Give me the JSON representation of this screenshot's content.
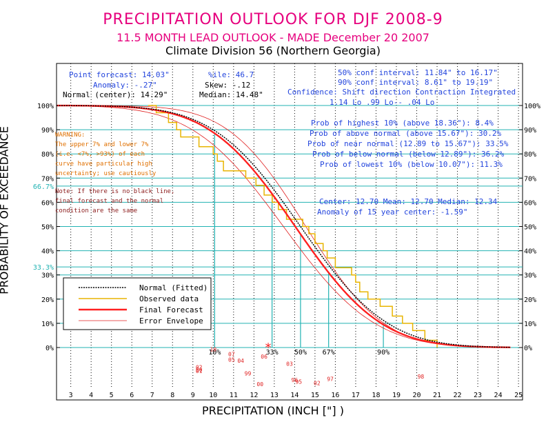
{
  "header": {
    "title": "PRECIPITATION OUTLOOK FOR DJF 2008-9",
    "subtitle": "11.5 MONTH LEAD OUTLOOK  - MADE December 20 2007",
    "division": "Climate Division 56 (Northern Georgia)"
  },
  "stats": {
    "point_forecast": "Point forecast: 14.03\"",
    "anomaly": "Anomaly: -.27\"",
    "normal_center": "Normal (center): 14.29\"",
    "ile": "%ile: 46.7",
    "skew": "Skew: -.12",
    "median": "Median: 14.48\"",
    "conf50": "50% conf interval: 11.84\" to 16.17\"",
    "conf90": "90% conf interval: 8.61\" to 19.19\"",
    "confidence_header": "Confidence: Shift direction   Contraction   Integrated",
    "confidence_values": "1.14 Lo          .99 Lo--      .04 Lo"
  },
  "probabilities": [
    "Prob of highest 10% (above 18.36\"): 8.4%",
    "Prob of above normal (above 15.67\"): 30.2%",
    "Prob of near normal (12.89 to 15.67\"): 33.5%",
    "Prob of below normal (below 12.89\"): 36.2%",
    "Prob of lowest 10% (below 10.07\"): 11.3%"
  ],
  "center_info": [
    "Center: 12.70 Mean: 12.70 Median: 12.34",
    "Anomaly of 15 year center: -1.59\""
  ],
  "warning": [
    "WARNING:",
    "The upper 7% and lower 7%",
    "(i.e. <7%, >93%) of each",
    "curve have particular high",
    "uncertainty; use cautiously"
  ],
  "note": [
    "Note: If there is no black line,",
    "final forecast and the normal",
    "condition are the same"
  ],
  "legend": [
    "Normal (Fitted)",
    "Observed data",
    "Final Forecast",
    "Error Envelope"
  ],
  "colors": {
    "title": "#e6007e",
    "grid": "#20b2b2",
    "observed": "#e8b400",
    "forecast": "#ff2020",
    "envelope": "#e02020",
    "normal": "#000000",
    "text_blue": "#2244dd",
    "years": "#e02020"
  },
  "chart_data": {
    "type": "line",
    "xlabel": "PRECIPITATION (INCH [\"] )",
    "ylabel": "PROBABILITY OF EXCEEDANCE",
    "xlim": [
      2.3,
      25.2
    ],
    "ylim": [
      0,
      100
    ],
    "x_ticks": [
      3,
      4,
      5,
      6,
      7,
      8,
      9,
      10,
      11,
      12,
      13,
      14,
      15,
      16,
      17,
      18,
      19,
      20,
      21,
      22,
      23,
      24,
      25
    ],
    "y_ticks_left": [
      "100%",
      "90%",
      "80%",
      "70%",
      "60%",
      "50%",
      "40%",
      "30%",
      "20%",
      "10%",
      "0%"
    ],
    "y_ticks_right": [
      "100%",
      "90%",
      "80%",
      "70%",
      "60%",
      "50%",
      "40%",
      "30%",
      "20%",
      "10%",
      "0%"
    ],
    "y_tick_values": [
      100,
      90,
      80,
      70,
      60,
      50,
      40,
      30,
      20,
      10,
      0
    ],
    "marker_levels": [
      {
        "label": "66.7%",
        "value": 66.7
      },
      {
        "label": "33.3%",
        "value": 33.3
      }
    ],
    "percentile_markers": [
      {
        "label": "10%",
        "x": 10.07
      },
      {
        "label": "33%",
        "x": 12.89
      },
      {
        "label": "50%",
        "x": 14.29
      },
      {
        "label": "67%",
        "x": 15.67
      },
      {
        "label": "90%",
        "x": 18.36
      }
    ],
    "point_forecast_marker": {
      "x": 12.7,
      "y": 0,
      "symbol": "*"
    },
    "series": [
      {
        "name": "Normal (Fitted)",
        "mean": 14.29,
        "sd": 3.35,
        "style": "dotted"
      },
      {
        "name": "Final Forecast",
        "mean": 14.03,
        "sd": 3.3,
        "style": "solid"
      },
      {
        "name": "Error Envelope (upper)",
        "mean": 14.55,
        "sd": 3.0,
        "style": "thin"
      },
      {
        "name": "Error Envelope (lower)",
        "mean": 13.45,
        "sd": 3.5,
        "style": "thin"
      },
      {
        "name": "Observed data",
        "type": "step",
        "values": [
          [
            6.8,
            100
          ],
          [
            7.2,
            97
          ],
          [
            7.8,
            93
          ],
          [
            8.2,
            90
          ],
          [
            8.4,
            87
          ],
          [
            9.0,
            87
          ],
          [
            9.3,
            83
          ],
          [
            10.0,
            80
          ],
          [
            10.2,
            77
          ],
          [
            10.5,
            73
          ],
          [
            11.3,
            73
          ],
          [
            11.6,
            70
          ],
          [
            12.1,
            67
          ],
          [
            12.5,
            63
          ],
          [
            12.9,
            60
          ],
          [
            13.2,
            57
          ],
          [
            13.6,
            53
          ],
          [
            14.1,
            53
          ],
          [
            14.4,
            50
          ],
          [
            14.7,
            47
          ],
          [
            15.0,
            43
          ],
          [
            15.4,
            40
          ],
          [
            15.6,
            37
          ],
          [
            16.0,
            33
          ],
          [
            16.4,
            33
          ],
          [
            16.8,
            30
          ],
          [
            17.0,
            27
          ],
          [
            17.2,
            23
          ],
          [
            17.6,
            20
          ],
          [
            18.2,
            17
          ],
          [
            18.8,
            13
          ],
          [
            19.3,
            10
          ],
          [
            19.8,
            7
          ],
          [
            20.4,
            3
          ],
          [
            21.0,
            0
          ]
        ]
      }
    ],
    "year_labels": [
      {
        "label": "10",
        "x": 10.0,
        "y": -1.5
      },
      {
        "label": "07",
        "x": 10.9,
        "y": -3.5
      },
      {
        "label": "05",
        "x": 10.9,
        "y": -5.8
      },
      {
        "label": "04",
        "x": 11.35,
        "y": -6.2
      },
      {
        "label": "06",
        "x": 12.5,
        "y": -4.5
      },
      {
        "label": "03",
        "x": 13.75,
        "y": -7.5
      },
      {
        "label": "02",
        "x": 9.3,
        "y": -9.0
      },
      {
        "label": "00",
        "x": 9.3,
        "y": -10.0
      },
      {
        "label": "01",
        "x": 9.3,
        "y": -10.5
      },
      {
        "label": "99",
        "x": 11.7,
        "y": -11.5
      },
      {
        "label": "00",
        "x": 12.3,
        "y": -16.0
      },
      {
        "label": "96",
        "x": 14.0,
        "y": -14.3
      },
      {
        "label": "95",
        "x": 14.2,
        "y": -15.0
      },
      {
        "label": "97",
        "x": 15.75,
        "y": -13.8
      },
      {
        "label": "02",
        "x": 15.1,
        "y": -15.5
      },
      {
        "label": "98",
        "x": 20.2,
        "y": -12.8
      }
    ]
  }
}
